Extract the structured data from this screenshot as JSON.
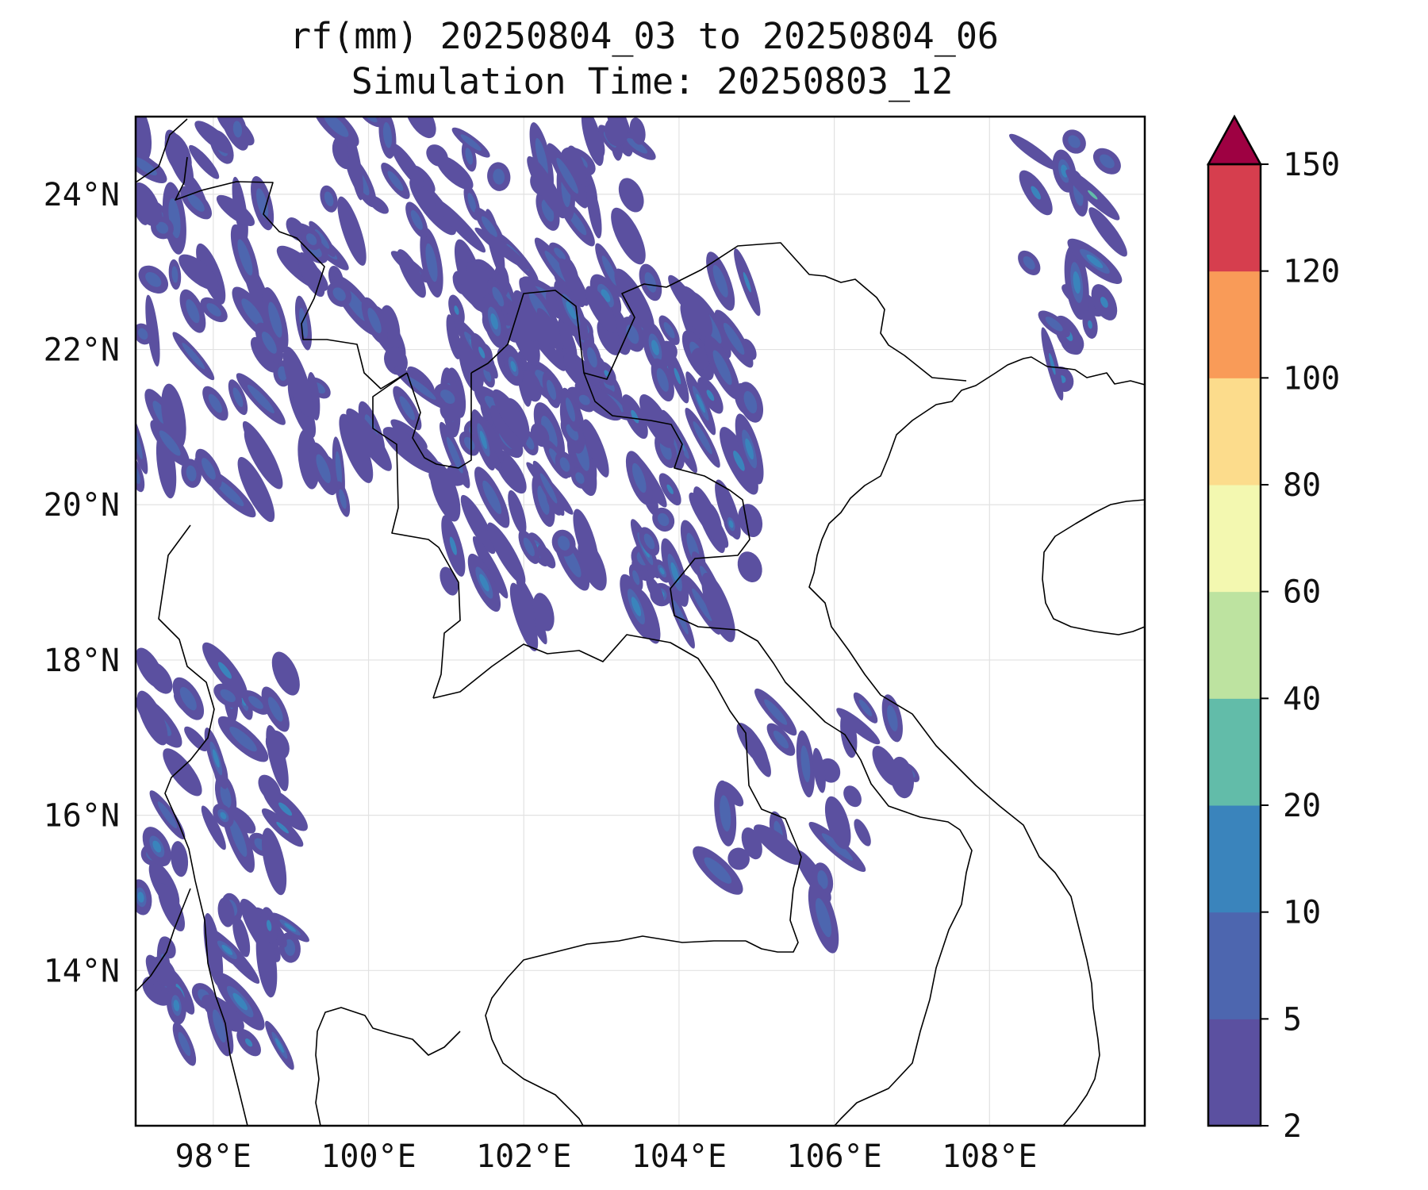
{
  "title": {
    "line1": "rf(mm) 20250804_03 to 20250804_06",
    "line2": "Simulation Time: 20250803_12"
  },
  "map": {
    "lon_range": [
      97.0,
      110.0
    ],
    "lat_range": [
      12.0,
      25.0
    ],
    "projection": "PlateCarree",
    "gridlines": true,
    "coastlines": true,
    "country_borders": true,
    "x_ticks": [
      {
        "value": 98,
        "label": "98°E"
      },
      {
        "value": 100,
        "label": "100°E"
      },
      {
        "value": 102,
        "label": "102°E"
      },
      {
        "value": 104,
        "label": "104°E"
      },
      {
        "value": 106,
        "label": "106°E"
      },
      {
        "value": 108,
        "label": "108°E"
      }
    ],
    "y_ticks": [
      {
        "value": 24,
        "label": "24°N"
      },
      {
        "value": 22,
        "label": "22°N"
      },
      {
        "value": 20,
        "label": "20°N"
      },
      {
        "value": 18,
        "label": "18°N"
      },
      {
        "value": 16,
        "label": "16°N"
      },
      {
        "value": 14,
        "label": "14°N"
      }
    ],
    "rain_field": [
      {
        "region": "northwest Myanmar/Yunnan",
        "lon": [
          97.0,
          103.5
        ],
        "lat": [
          20.0,
          25.0
        ],
        "class": "2-10 mm",
        "pattern": "dense streaks"
      },
      {
        "region": "northern Laos / NW Vietnam",
        "lon": [
          101.0,
          105.0
        ],
        "lat": [
          18.5,
          23.0
        ],
        "class": "2-20 mm",
        "pattern": "NW-SE streaks"
      },
      {
        "region": "Myanmar-Thailand border",
        "lon": [
          97.0,
          99.0
        ],
        "lat": [
          13.0,
          18.0
        ],
        "class": "2-20 mm",
        "pattern": "dense"
      },
      {
        "region": "central Laos / Vietnam",
        "lon": [
          104.5,
          107.0
        ],
        "lat": [
          14.5,
          17.5
        ],
        "class": "2-10 mm",
        "pattern": "scattered"
      },
      {
        "region": "far east edge",
        "lon": [
          108.5,
          110.0
        ],
        "lat": [
          21.5,
          25.0
        ],
        "class": "2-40 mm",
        "pattern": "scattered"
      }
    ]
  },
  "colorbar": {
    "label": "",
    "extend": "max",
    "bounds": [
      2,
      5,
      10,
      20,
      40,
      60,
      80,
      100,
      120,
      150
    ],
    "tick_labels": [
      "2",
      "5",
      "10",
      "20",
      "40",
      "60",
      "80",
      "100",
      "120",
      "150"
    ],
    "colors": [
      "#5b50a0",
      "#4d66af",
      "#3a84bc",
      "#62bca9",
      "#bde3a0",
      "#f3f8b0",
      "#fcdc8c",
      "#f99b58",
      "#d63e4e"
    ],
    "extend_color": "#9e0142"
  }
}
